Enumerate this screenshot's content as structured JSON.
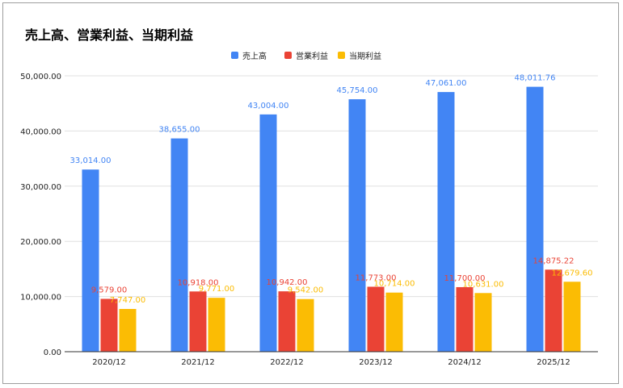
{
  "chart_data": {
    "type": "bar",
    "title": "売上高、営業利益、当期利益",
    "categories": [
      "2020/12",
      "2021/12",
      "2022/12",
      "2023/12",
      "2024/12",
      "2025/12"
    ],
    "series": [
      {
        "name": "売上高",
        "color": "#4285f4",
        "values": [
          33014.0,
          38655.0,
          43004.0,
          45754.0,
          47061.0,
          48011.76
        ]
      },
      {
        "name": "営業利益",
        "color": "#ea4335",
        "values": [
          9579.0,
          10918.0,
          10942.0,
          11773.0,
          11700.0,
          14875.22
        ]
      },
      {
        "name": "当期利益",
        "color": "#fbbc04",
        "values": [
          7747.0,
          9771.0,
          9542.0,
          10714.0,
          10631.0,
          12679.6
        ]
      }
    ],
    "y_ticks": [
      "0.00",
      "10,000.00",
      "20,000.00",
      "30,000.00",
      "40,000.00",
      "50,000.00"
    ],
    "ylim": [
      0,
      50000
    ],
    "legend_position": "top-center",
    "grid": true
  }
}
